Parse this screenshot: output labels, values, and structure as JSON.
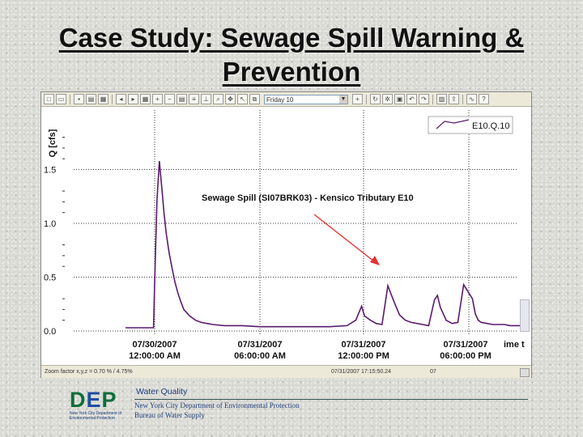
{
  "slide": {
    "title_line1": "Case Study: Sewage Spill Warning &",
    "title_line2": "Prevention"
  },
  "toolbar": {
    "select_value": "Friday 10"
  },
  "chart": {
    "legend_label": "E10.Q.10",
    "annotation": "Sewage Spill (SI07BRK03) - Kensico Tributary E10",
    "y_unit_label": "Q [cfs]",
    "colors": {
      "series": "#5a1a6e",
      "arrow": "#e53030",
      "grid": "#000000"
    }
  },
  "chart_data": {
    "type": "line",
    "title": "Sewage Spill (SI07BRK03) - Kensico Tributary E10",
    "ylabel": "Q [cfs]",
    "xlabel": "ime t",
    "ylim": [
      0.0,
      1.8
    ],
    "xlim_hours_label": [
      "07/30/2007 12:00:00 AM",
      "07/31/2007 ime t"
    ],
    "x_ticks": [
      {
        "date": "07/30/2007",
        "time": "12:00:00 AM"
      },
      {
        "date": "07/31/2007",
        "time": "06:00:00 AM"
      },
      {
        "date": "07/31/2007",
        "time": "12:00:00 PM"
      },
      {
        "date": "07/31/2007",
        "time": "06:00:00 PM"
      }
    ],
    "y_ticks": [
      "0.0",
      "0.5",
      "1.0",
      "1.5"
    ],
    "series": [
      {
        "name": "E10.Q.10",
        "x_hours": [
          -5.0,
          -0.2,
          0.0,
          0.4,
          0.8,
          1.2,
          1.6,
          2.0,
          2.5,
          3.0,
          3.5,
          4.0,
          4.5,
          5.0,
          6.0,
          7.0,
          8.0,
          10.0,
          12.0,
          15.0,
          18.0,
          22.0,
          26.0,
          30.0,
          33.0,
          34.5,
          35.5,
          36.0,
          36.5,
          37.0,
          38.0,
          39.0,
          40.0,
          41.0,
          42.0,
          43.0,
          44.0,
          46.0,
          47.0,
          48.0,
          48.5,
          49.0,
          50.0,
          51.0,
          52.0,
          53.0,
          54.5,
          55.0,
          55.5,
          56.0,
          57.0,
          58.0,
          59.0,
          60.0,
          61.0,
          62.0,
          64.0
        ],
        "y": [
          0.03,
          0.03,
          0.45,
          1.22,
          1.58,
          1.35,
          1.1,
          0.9,
          0.72,
          0.58,
          0.45,
          0.35,
          0.27,
          0.2,
          0.14,
          0.1,
          0.08,
          0.06,
          0.05,
          0.05,
          0.04,
          0.04,
          0.04,
          0.04,
          0.05,
          0.1,
          0.23,
          0.14,
          0.12,
          0.1,
          0.07,
          0.06,
          0.42,
          0.28,
          0.15,
          0.1,
          0.08,
          0.06,
          0.05,
          0.29,
          0.33,
          0.22,
          0.1,
          0.07,
          0.08,
          0.43,
          0.3,
          0.16,
          0.1,
          0.08,
          0.07,
          0.06,
          0.06,
          0.06,
          0.05,
          0.05,
          0.05
        ]
      }
    ],
    "legend": "top-right",
    "grid": "dotted"
  },
  "statusbar": {
    "left": "Zoom factor x,y,z = 0.70 % / 4.75%",
    "right": "07/31/2007 17:15:50.24",
    "far": "07"
  },
  "footer": {
    "logo_text": "DEP",
    "logo_caption": "New York City Department of Environmental Protection",
    "section": "Water Quality",
    "dept": "New York City Department of Environmental Protection",
    "bureau": "Bureau of Water Supply"
  },
  "icons": [
    "new-icon",
    "open-icon",
    "save-icon",
    "print-icon",
    "zoom-icon",
    "pan-icon",
    "chart-icon",
    "undo-icon",
    "redo-icon"
  ]
}
